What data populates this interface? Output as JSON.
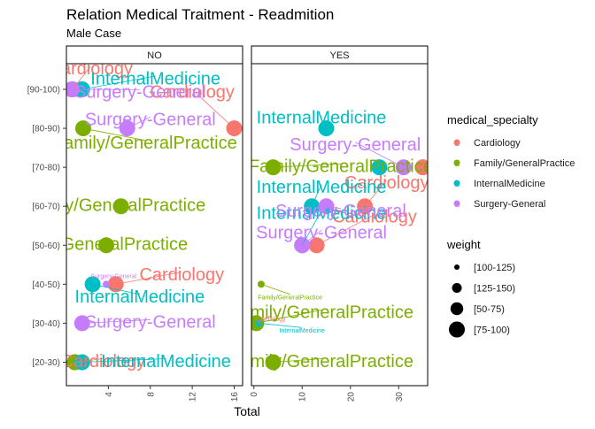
{
  "chart_data": {
    "type": "scatter",
    "title": "Relation Medical Traitment - Readmition",
    "subtitle": "Male Case",
    "xlabel": "Total",
    "ylabel": "",
    "facets": [
      "NO",
      "YES"
    ],
    "categories": [
      "[20-30)",
      "[30-40)",
      "[40-50)",
      "[50-60)",
      "[60-70)",
      "[70-80)",
      "[80-90)",
      "[90-100)"
    ],
    "x_ticks": {
      "NO": [
        "4",
        "8",
        "12",
        "16"
      ],
      "YES": [
        "0",
        "10",
        "20",
        "30"
      ]
    },
    "xlim": {
      "NO": [
        0,
        16.8
      ],
      "YES": [
        -0.5,
        36
      ]
    },
    "colors": {
      "Cardiology": "#F8766D",
      "Family/GeneralPractice": "#7CAE00",
      "InternalMedicine": "#00BFC4",
      "Surgery-General": "#C77CFF"
    },
    "legend": {
      "color_title": "medical_specialty",
      "color_items": [
        "Cardiology",
        "Family/GeneralPractice",
        "InternalMedicine",
        "Surgery-General"
      ],
      "size_title": "weight",
      "size_items": [
        "[100-125)",
        "[125-150)",
        "[50-75)",
        "[75-100)"
      ],
      "position": "right"
    },
    "series": [
      {
        "name": "Cardiology",
        "points": [
          {
            "facet": "NO",
            "x": 0.6,
            "y": "[90-100)",
            "w": "[75-100)",
            "label": "Cardiology",
            "lx": 2.3,
            "ly": 7.5
          },
          {
            "facet": "NO",
            "x": 16,
            "y": "[80-90)",
            "w": "[75-100)",
            "label": "Cardiology",
            "lx": 12.0,
            "ly": 6.9
          },
          {
            "facet": "NO",
            "x": 4.7,
            "y": "[40-50)",
            "w": "[75-100)",
            "label": "Cardiology",
            "lx": 11.0,
            "ly": 2.22
          },
          {
            "facet": "NO",
            "x": 0.8,
            "y": "[20-30)",
            "w": "[75-100)",
            "label": "Cardiology",
            "lx": 3.5,
            "ly": 0.0
          },
          {
            "facet": "YES",
            "x": 35,
            "y": "[70-80)",
            "w": "[75-100)",
            "label": "",
            "lx": 0,
            "ly": 0
          },
          {
            "facet": "YES",
            "x": 23,
            "y": "[60-70)",
            "w": "[75-100)",
            "label": "Cardiology",
            "lx": 27.5,
            "ly": 4.58
          },
          {
            "facet": "YES",
            "x": 13,
            "y": "[50-60)",
            "w": "[75-100)",
            "label": "Cardiology",
            "lx": 25,
            "ly": 3.7
          },
          {
            "facet": "YES",
            "x": 0.8,
            "y": "[30-40)",
            "w": "[100-125)",
            "label": "Cardiology",
            "lx": 3.5,
            "ly": 1.1
          }
        ]
      },
      {
        "name": "Family/GeneralPractice",
        "points": [
          {
            "facet": "NO",
            "x": 1.6,
            "y": "[80-90)",
            "w": "[75-100)",
            "label": "Family/GeneralPractice",
            "lx": 7.5,
            "ly": 5.6
          },
          {
            "facet": "NO",
            "x": 5.2,
            "y": "[60-70)",
            "w": "[75-100)",
            "label": "Family/GeneralPractice",
            "lx": 4.5,
            "ly": 4.0
          },
          {
            "facet": "NO",
            "x": 3.8,
            "y": "[50-60)",
            "w": "[75-100)",
            "label": "Family/GeneralPractice",
            "lx": 2.8,
            "ly": 3.0
          },
          {
            "facet": "NO",
            "x": 0.8,
            "y": "[20-30)",
            "w": "[75-100)",
            "label": "",
            "lx": 0,
            "ly": 0
          },
          {
            "facet": "YES",
            "x": 4,
            "y": "[70-80)",
            "w": "[75-100)",
            "label": "Family/GeneralPractice",
            "lx": 18,
            "ly": 5.0
          },
          {
            "facet": "YES",
            "x": 1.5,
            "y": "[40-50)",
            "w": "[100-125)",
            "label": "Family/GeneralPractice",
            "lx": 7.5,
            "ly": 1.65
          },
          {
            "facet": "YES",
            "x": 0.5,
            "y": "[30-40)",
            "w": "[75-100)",
            "label": "Family/GeneralPractice",
            "lx": 14,
            "ly": 1.25
          },
          {
            "facet": "YES",
            "x": 4,
            "y": "[20-30)",
            "w": "[75-100)",
            "label": "Family/GeneralPractice",
            "lx": 14,
            "ly": 0.0
          }
        ]
      },
      {
        "name": "InternalMedicine",
        "points": [
          {
            "facet": "NO",
            "x": 1.5,
            "y": "[90-100)",
            "w": "[75-100)",
            "label": "InternalMedicine",
            "lx": 8.5,
            "ly": 7.25
          },
          {
            "facet": "NO",
            "x": 2.5,
            "y": "[40-50)",
            "w": "[75-100)",
            "label": "InternalMedicine",
            "lx": 7,
            "ly": 1.65
          },
          {
            "facet": "NO",
            "x": 1.5,
            "y": "[20-30)",
            "w": "[75-100)",
            "label": "InternalMedicine",
            "lx": 9.5,
            "ly": 0.0
          },
          {
            "facet": "YES",
            "x": 15,
            "y": "[80-90)",
            "w": "[75-100)",
            "label": "InternalMedicine",
            "lx": 14,
            "ly": 6.25
          },
          {
            "facet": "YES",
            "x": 26,
            "y": "[70-80)",
            "w": "[75-100)",
            "label": "",
            "lx": 0,
            "ly": 0
          },
          {
            "facet": "YES",
            "x": 12,
            "y": "[60-70)",
            "w": "[75-100)",
            "label": "InternalMedicine",
            "lx": 14,
            "ly": 4.47
          },
          {
            "facet": "YES",
            "x": 10,
            "y": "[50-60)",
            "w": "[75-100)",
            "label": "InternalMedicine",
            "lx": 14,
            "ly": 3.8
          },
          {
            "facet": "YES",
            "x": 1,
            "y": "[30-40)",
            "w": "[100-125)",
            "label": "InternalMedicine",
            "lx": 10,
            "ly": 0.8
          }
        ]
      },
      {
        "name": "Surgery-General",
        "points": [
          {
            "facet": "NO",
            "x": 0.5,
            "y": "[90-100)",
            "w": "[75-100)",
            "label": "Surgery-General",
            "lx": 7,
            "ly": 6.9
          },
          {
            "facet": "NO",
            "x": 5.8,
            "y": "[80-90)",
            "w": "[75-100)",
            "label": "Surgery-General",
            "lx": 8,
            "ly": 6.2
          },
          {
            "facet": "NO",
            "x": 3.8,
            "y": "[40-50)",
            "w": "[100-125)",
            "label": "Surgery-General",
            "lx": 4.5,
            "ly": 2.2
          },
          {
            "facet": "NO",
            "x": 1.5,
            "y": "[30-40)",
            "w": "[75-100)",
            "label": "Surgery-General",
            "lx": 8,
            "ly": 1.0
          },
          {
            "facet": "YES",
            "x": 31,
            "y": "[70-80)",
            "w": "[75-100)",
            "label": "Surgery-General",
            "lx": 21,
            "ly": 5.55
          },
          {
            "facet": "YES",
            "x": 15,
            "y": "[60-70)",
            "w": "[75-100)",
            "label": "Surgery-General",
            "lx": 18,
            "ly": 3.85
          },
          {
            "facet": "YES",
            "x": 10,
            "y": "[50-60)",
            "w": "[75-100)",
            "label": "Surgery-General",
            "lx": 14,
            "ly": 3.3
          }
        ]
      }
    ]
  }
}
